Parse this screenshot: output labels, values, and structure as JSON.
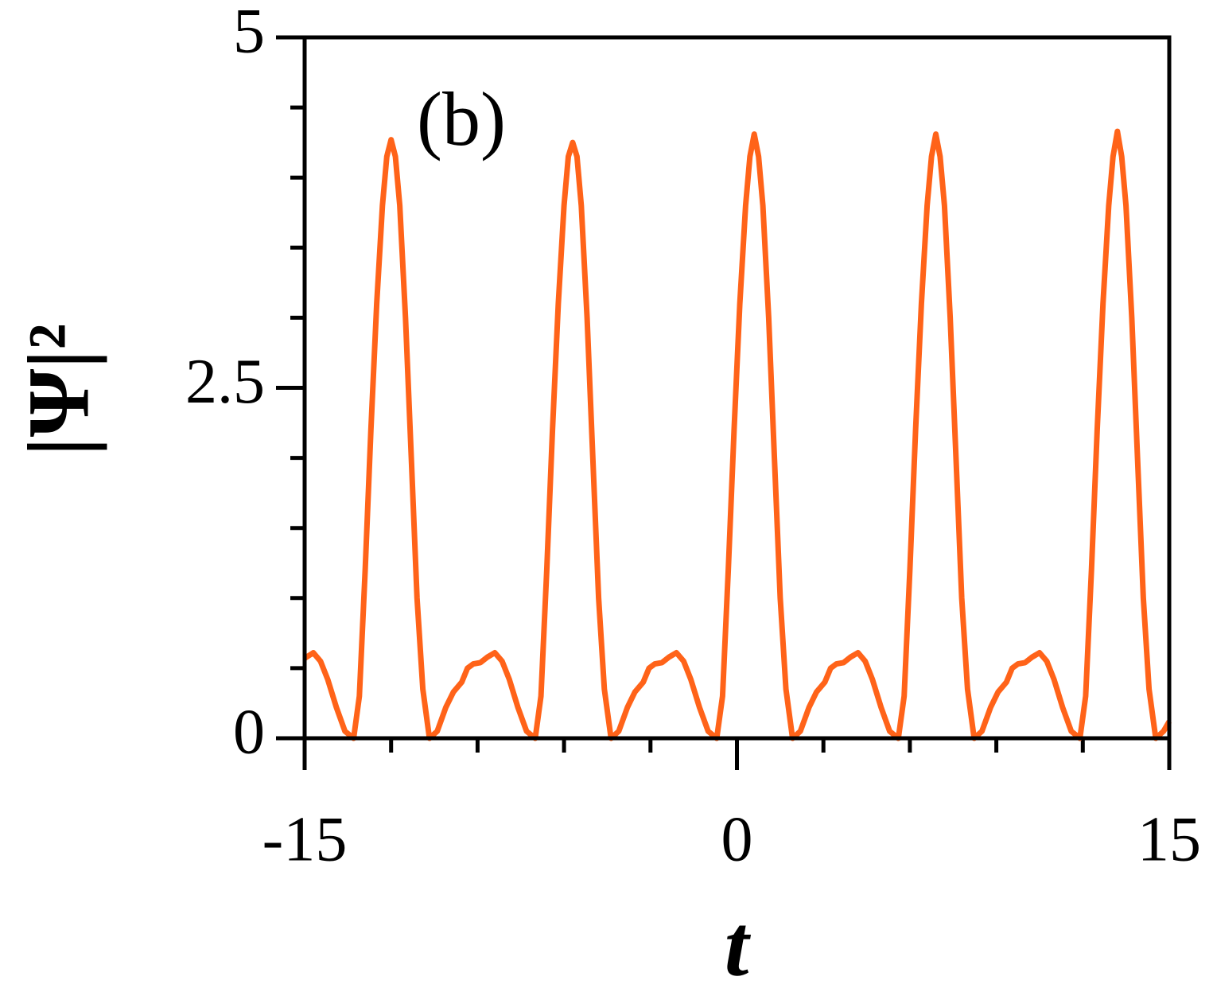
{
  "chart_data": {
    "type": "line",
    "annotation": "(b)",
    "x_label": "t",
    "y_label": "|Ψ|²",
    "x": [
      -15,
      -14.7,
      -14.45,
      -14.2,
      -13.9,
      -13.6,
      -13.3,
      -13.1,
      -12.9,
      -12.7,
      -12.5,
      -12.3,
      -12.15,
      -12,
      -11.85,
      -11.7,
      -11.5,
      -11.3,
      -11.1,
      -10.9,
      -10.67,
      -10.4,
      -10.1,
      -9.84,
      -9.55,
      -9.35,
      -9.15,
      -8.9,
      -8.65,
      -8.4,
      -8.15,
      -7.9,
      -7.6,
      -7.3,
      -7.0,
      -6.8,
      -6.6,
      -6.4,
      -6.2,
      -6.0,
      -5.85,
      -5.7,
      -5.55,
      -5.4,
      -5.2,
      -5.0,
      -4.8,
      -4.6,
      -4.37,
      -4.1,
      -3.8,
      -3.54,
      -3.25,
      -3.05,
      -2.85,
      -2.6,
      -2.35,
      -2.1,
      -1.85,
      -1.6,
      -1.3,
      -1.0,
      -0.7,
      -0.5,
      -0.3,
      -0.1,
      0.1,
      0.3,
      0.45,
      0.6,
      0.75,
      0.9,
      1.1,
      1.3,
      1.5,
      1.7,
      1.93,
      2.2,
      2.5,
      2.76,
      3.05,
      3.25,
      3.45,
      3.7,
      3.95,
      4.2,
      4.45,
      4.7,
      5.0,
      5.3,
      5.6,
      5.8,
      6.0,
      6.2,
      6.4,
      6.6,
      6.75,
      6.9,
      7.05,
      7.2,
      7.4,
      7.6,
      7.8,
      8.0,
      8.23,
      8.5,
      8.8,
      9.06,
      9.35,
      9.55,
      9.75,
      10.0,
      10.25,
      10.5,
      10.75,
      11.0,
      11.3,
      11.6,
      11.9,
      12.1,
      12.3,
      12.5,
      12.7,
      12.9,
      13.05,
      13.2,
      13.35,
      13.5,
      13.7,
      13.9,
      14.1,
      14.3,
      14.53,
      14.8,
      15.0
    ],
    "series": [
      {
        "color": "#ff6319",
        "values": [
          0.57,
          0.61,
          0.55,
          0.42,
          0.22,
          0.05,
          0,
          0.3,
          1.2,
          2.2,
          3.1,
          3.8,
          4.15,
          4.27,
          4.15,
          3.8,
          3.0,
          2.0,
          1.0,
          0.35,
          0,
          0.05,
          0.22,
          0.33,
          0.4,
          0.5,
          0.53,
          0.54,
          0.58,
          0.61,
          0.55,
          0.42,
          0.22,
          0.05,
          0,
          0.3,
          1.2,
          2.2,
          3.1,
          3.8,
          4.15,
          4.25,
          4.15,
          3.8,
          3.0,
          2.0,
          1.0,
          0.35,
          0,
          0.05,
          0.22,
          0.33,
          0.4,
          0.5,
          0.53,
          0.54,
          0.58,
          0.61,
          0.55,
          0.42,
          0.22,
          0.05,
          0,
          0.3,
          1.2,
          2.2,
          3.1,
          3.8,
          4.15,
          4.31,
          4.15,
          3.8,
          3.0,
          2.0,
          1.0,
          0.35,
          0,
          0.05,
          0.22,
          0.33,
          0.4,
          0.5,
          0.53,
          0.54,
          0.58,
          0.61,
          0.55,
          0.42,
          0.22,
          0.05,
          0,
          0.3,
          1.2,
          2.2,
          3.1,
          3.8,
          4.15,
          4.31,
          4.15,
          3.8,
          3.0,
          2.0,
          1.0,
          0.35,
          0,
          0.05,
          0.22,
          0.33,
          0.4,
          0.5,
          0.53,
          0.54,
          0.58,
          0.61,
          0.55,
          0.42,
          0.22,
          0.05,
          0,
          0.3,
          1.2,
          2.2,
          3.1,
          3.8,
          4.15,
          4.33,
          4.15,
          3.8,
          3.0,
          2.0,
          1.0,
          0.35,
          0,
          0.05,
          0.12
        ]
      }
    ],
    "xlim": [
      -15,
      15
    ],
    "xticks": [
      -15,
      0,
      15
    ],
    "xminorticks": [
      -12,
      -9,
      -6,
      -3,
      3,
      6,
      9,
      12
    ],
    "ylim": [
      0,
      5
    ],
    "yticks": [
      0,
      2.5,
      5
    ],
    "yminorticks": [
      0.5,
      1,
      1.5,
      2,
      3,
      3.5,
      4,
      4.5
    ],
    "grid": false
  }
}
